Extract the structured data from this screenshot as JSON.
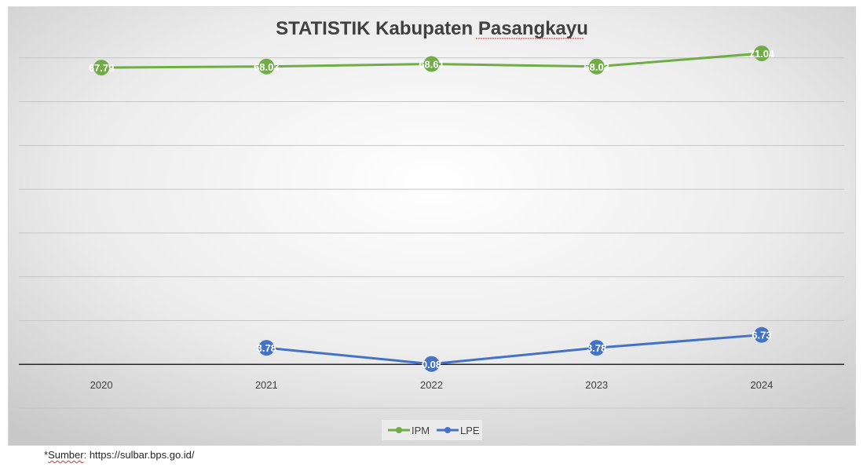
{
  "chart_data": {
    "type": "line",
    "title": "STATISTIK Kabupaten Pasangkayu",
    "categories": [
      "2020",
      "2021",
      "2022",
      "2023",
      "2024"
    ],
    "series": [
      {
        "name": "IPM",
        "color": "#70ad47",
        "values": [
          67.79,
          68.03,
          68.61,
          68.03,
          71.04
        ],
        "labels": [
          "67.79",
          "68.03",
          "68.61",
          "68.03",
          "71.04"
        ]
      },
      {
        "name": "LPE",
        "color": "#4472c4",
        "values": [
          null,
          3.78,
          0.08,
          3.78,
          6.73
        ],
        "labels": [
          "",
          "3.78",
          "0.08",
          "3.78",
          "6.73"
        ]
      }
    ],
    "ylim": [
      -10,
      80
    ],
    "grid": true,
    "legend": "bottom"
  },
  "footer": {
    "source_prefix": "*",
    "source_word": "Sumber",
    "source_rest": ": https://sulbar.bps.go.id/"
  }
}
